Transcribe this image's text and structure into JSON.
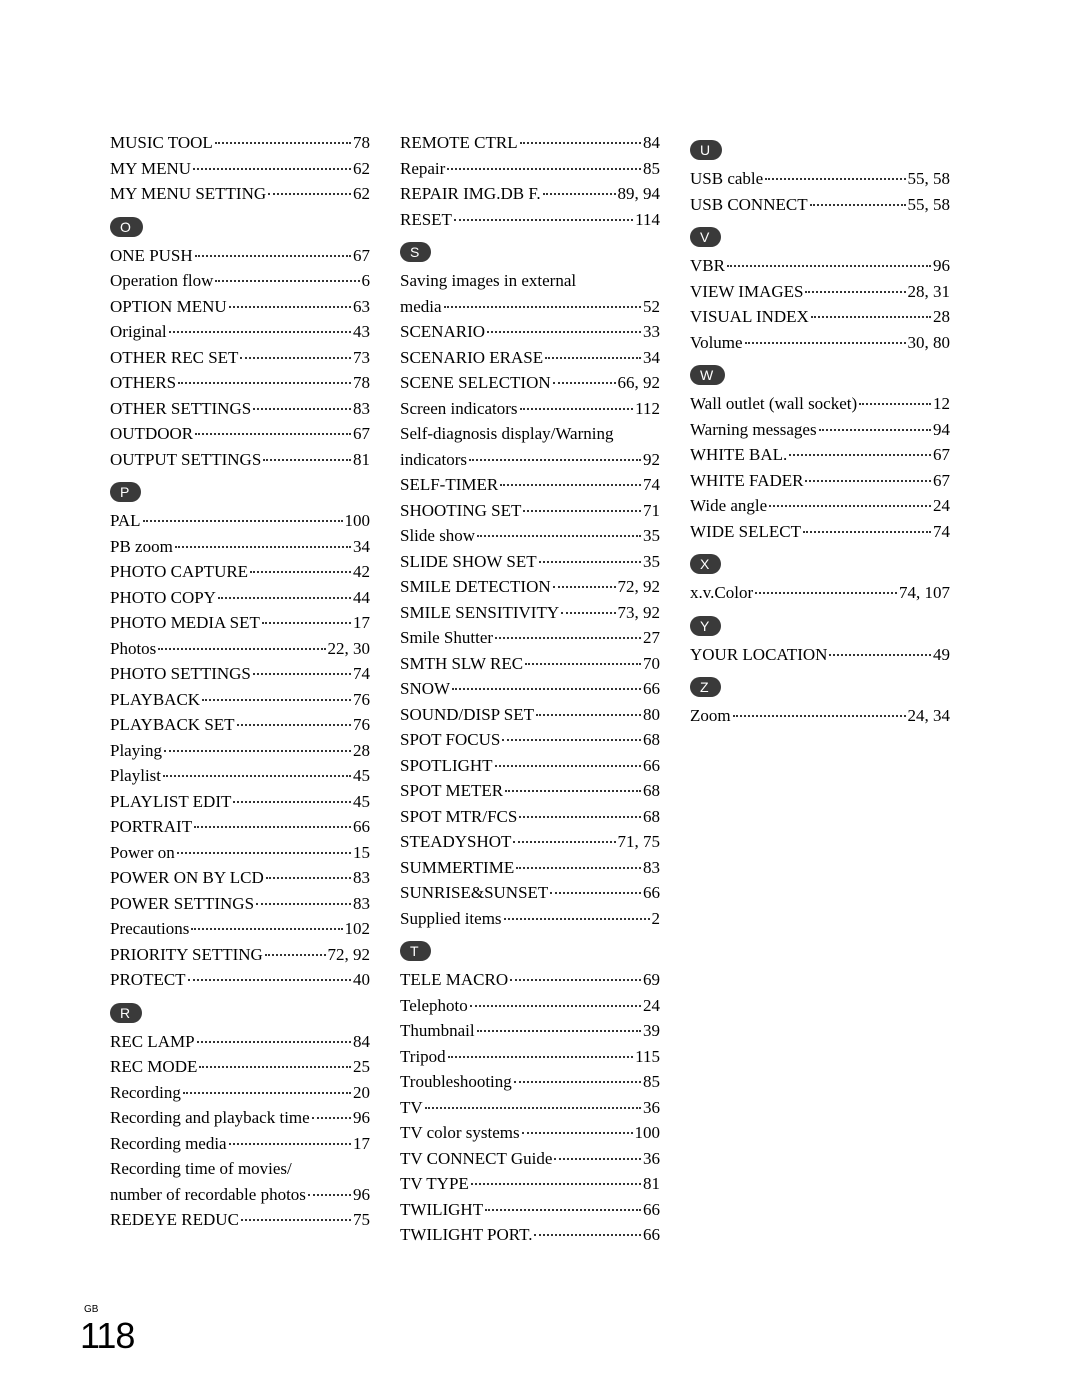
{
  "page_number": "118",
  "page_label": "GB",
  "columns": [
    [
      {
        "type": "item",
        "label": "MUSIC TOOL",
        "page": "78"
      },
      {
        "type": "item",
        "label": "MY MENU",
        "page": "62"
      },
      {
        "type": "item",
        "label": "MY MENU SETTING",
        "page": "62"
      },
      {
        "type": "section",
        "letter": "O"
      },
      {
        "type": "item",
        "label": "ONE PUSH",
        "page": "67"
      },
      {
        "type": "item",
        "label": "Operation flow",
        "page": "6"
      },
      {
        "type": "item",
        "label": "OPTION MENU",
        "page": "63"
      },
      {
        "type": "item",
        "label": "Original",
        "page": "43"
      },
      {
        "type": "item",
        "label": "OTHER REC SET",
        "page": "73"
      },
      {
        "type": "item",
        "label": "OTHERS",
        "page": "78"
      },
      {
        "type": "item",
        "label": "OTHER SETTINGS",
        "page": "83"
      },
      {
        "type": "item",
        "label": "OUTDOOR",
        "page": "67"
      },
      {
        "type": "item",
        "label": "OUTPUT SETTINGS",
        "page": "81"
      },
      {
        "type": "section",
        "letter": "P"
      },
      {
        "type": "item",
        "label": "PAL",
        "page": "100"
      },
      {
        "type": "item",
        "label": "PB zoom",
        "page": "34"
      },
      {
        "type": "item",
        "label": "PHOTO CAPTURE",
        "page": "42"
      },
      {
        "type": "item",
        "label": "PHOTO COPY",
        "page": "44"
      },
      {
        "type": "item",
        "label": "PHOTO MEDIA SET",
        "page": "17"
      },
      {
        "type": "item",
        "label": "Photos",
        "page": "22, 30"
      },
      {
        "type": "item",
        "label": "PHOTO SETTINGS",
        "page": "74"
      },
      {
        "type": "item",
        "label": "PLAYBACK",
        "page": "76"
      },
      {
        "type": "item",
        "label": "PLAYBACK SET",
        "page": "76"
      },
      {
        "type": "item",
        "label": "Playing",
        "page": "28"
      },
      {
        "type": "item",
        "label": "Playlist",
        "page": "45"
      },
      {
        "type": "item",
        "label": "PLAYLIST EDIT",
        "page": "45"
      },
      {
        "type": "item",
        "label": "PORTRAIT",
        "page": "66"
      },
      {
        "type": "item",
        "label": "Power on",
        "page": "15"
      },
      {
        "type": "item",
        "label": "POWER ON BY LCD",
        "page": "83"
      },
      {
        "type": "item",
        "label": "POWER SETTINGS",
        "page": "83"
      },
      {
        "type": "item",
        "label": "Precautions",
        "page": "102"
      },
      {
        "type": "item",
        "label": "PRIORITY SETTING",
        "page": "72, 92"
      },
      {
        "type": "item",
        "label": "PROTECT",
        "page": "40"
      },
      {
        "type": "section",
        "letter": "R"
      },
      {
        "type": "item",
        "label": "REC LAMP",
        "page": "84"
      },
      {
        "type": "item",
        "label": "REC MODE",
        "page": "25"
      },
      {
        "type": "item",
        "label": "Recording",
        "page": "20"
      },
      {
        "type": "item",
        "label": "Recording and playback time",
        "page": "96"
      },
      {
        "type": "item",
        "label": "Recording media",
        "page": "17"
      },
      {
        "type": "wrap",
        "line1": "Recording time of movies/",
        "line2": "number of recordable photos",
        "page": "96"
      },
      {
        "type": "item",
        "label": "REDEYE REDUC",
        "page": "75"
      }
    ],
    [
      {
        "type": "item",
        "label": "REMOTE CTRL",
        "page": "84"
      },
      {
        "type": "item",
        "label": "Repair",
        "page": "85"
      },
      {
        "type": "item",
        "label": "REPAIR IMG.DB F.",
        "page": "89, 94"
      },
      {
        "type": "item",
        "label": "RESET",
        "page": "114"
      },
      {
        "type": "section",
        "letter": "S"
      },
      {
        "type": "wrap",
        "line1": "Saving images in external",
        "line2": "media",
        "page": "52"
      },
      {
        "type": "item",
        "label": "SCENARIO",
        "page": "33"
      },
      {
        "type": "item",
        "label": "SCENARIO ERASE",
        "page": "34"
      },
      {
        "type": "item",
        "label": "SCENE SELECTION",
        "page": "66, 92"
      },
      {
        "type": "item",
        "label": "Screen indicators",
        "page": "112"
      },
      {
        "type": "wrap",
        "line1": "Self-diagnosis display/Warning",
        "line2": "indicators",
        "page": "92"
      },
      {
        "type": "item",
        "label": "SELF-TIMER",
        "page": "74"
      },
      {
        "type": "item",
        "label": "SHOOTING SET",
        "page": "71"
      },
      {
        "type": "item",
        "label": "Slide show",
        "page": "35"
      },
      {
        "type": "item",
        "label": "SLIDE SHOW SET",
        "page": "35"
      },
      {
        "type": "item",
        "label": "SMILE DETECTION",
        "page": "72, 92"
      },
      {
        "type": "item",
        "label": "SMILE SENSITIVITY",
        "page": "73, 92"
      },
      {
        "type": "item",
        "label": "Smile Shutter",
        "page": "27"
      },
      {
        "type": "item",
        "label": "SMTH SLW REC",
        "page": "70"
      },
      {
        "type": "item",
        "label": "SNOW",
        "page": "66"
      },
      {
        "type": "item",
        "label": "SOUND/DISP SET",
        "page": "80"
      },
      {
        "type": "item",
        "label": "SPOT FOCUS",
        "page": "68"
      },
      {
        "type": "item",
        "label": "SPOTLIGHT",
        "page": "66"
      },
      {
        "type": "item",
        "label": "SPOT METER",
        "page": "68"
      },
      {
        "type": "item",
        "label": "SPOT MTR/FCS",
        "page": "68"
      },
      {
        "type": "item",
        "label": "STEADYSHOT",
        "page": "71, 75"
      },
      {
        "type": "item",
        "label": "SUMMERTIME",
        "page": "83"
      },
      {
        "type": "item",
        "label": "SUNRISE&SUNSET",
        "page": "66"
      },
      {
        "type": "item",
        "label": "Supplied items",
        "page": "2"
      },
      {
        "type": "section",
        "letter": "T"
      },
      {
        "type": "item",
        "label": "TELE MACRO",
        "page": "69"
      },
      {
        "type": "item",
        "label": "Telephoto",
        "page": "24"
      },
      {
        "type": "item",
        "label": "Thumbnail",
        "page": "39"
      },
      {
        "type": "item",
        "label": "Tripod",
        "page": "115"
      },
      {
        "type": "item",
        "label": "Troubleshooting",
        "page": "85"
      },
      {
        "type": "item",
        "label": "TV",
        "page": "36"
      },
      {
        "type": "item",
        "label": "TV color systems",
        "page": "100"
      },
      {
        "type": "item",
        "label": "TV CONNECT Guide",
        "page": "36"
      },
      {
        "type": "item",
        "label": "TV TYPE",
        "page": "81"
      },
      {
        "type": "item",
        "label": "TWILIGHT",
        "page": "66"
      },
      {
        "type": "item",
        "label": "TWILIGHT PORT.",
        "page": "66"
      }
    ],
    [
      {
        "type": "section",
        "letter": "U"
      },
      {
        "type": "item",
        "label": "USB cable",
        "page": "55, 58"
      },
      {
        "type": "item",
        "label": "USB CONNECT",
        "page": "55, 58"
      },
      {
        "type": "section",
        "letter": "V"
      },
      {
        "type": "item",
        "label": "VBR",
        "page": "96"
      },
      {
        "type": "item",
        "label": "VIEW IMAGES",
        "page": "28, 31"
      },
      {
        "type": "item",
        "label": "VISUAL INDEX",
        "page": "28"
      },
      {
        "type": "item",
        "label": "Volume",
        "page": "30, 80"
      },
      {
        "type": "section",
        "letter": "W"
      },
      {
        "type": "item",
        "label": "Wall outlet (wall socket)",
        "page": "12"
      },
      {
        "type": "item",
        "label": "Warning messages",
        "page": "94"
      },
      {
        "type": "item",
        "label": "WHITE BAL.",
        "page": "67"
      },
      {
        "type": "item",
        "label": "WHITE FADER",
        "page": "67"
      },
      {
        "type": "item",
        "label": "Wide angle",
        "page": "24"
      },
      {
        "type": "item",
        "label": "WIDE SELECT",
        "page": "74"
      },
      {
        "type": "section",
        "letter": "X"
      },
      {
        "type": "item",
        "label": "x.v.Color",
        "page": " 74, 107"
      },
      {
        "type": "section",
        "letter": "Y"
      },
      {
        "type": "item",
        "label": "YOUR LOCATION",
        "page": "49"
      },
      {
        "type": "section",
        "letter": "Z"
      },
      {
        "type": "item",
        "label": "Zoom",
        "page": "24, 34"
      }
    ]
  ]
}
